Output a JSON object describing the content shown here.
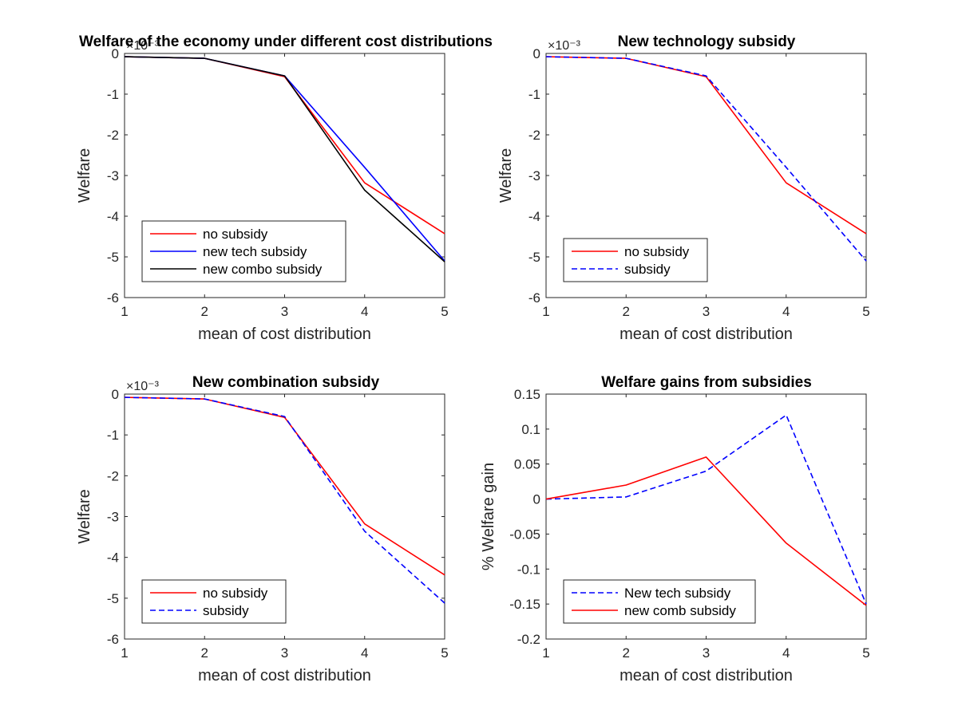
{
  "colors": {
    "red": "#ff0000",
    "blue": "#0000ff",
    "black": "#000000",
    "axis": "#262626"
  },
  "chart_data": [
    {
      "type": "line",
      "title": "Welfare of the economy under different cost distributions",
      "xlabel": "mean of cost distribution",
      "ylabel": "Welfare",
      "exponent_label": "×10⁻³",
      "x": [
        1,
        2,
        3,
        4,
        5
      ],
      "xlim": [
        1,
        5
      ],
      "ylim": [
        -6,
        0
      ],
      "xticks": [
        "1",
        "2",
        "3",
        "4",
        "5"
      ],
      "yticks": [
        "0",
        "-1",
        "-2",
        "-3",
        "-4",
        "-5",
        "-6"
      ],
      "legend_position": "bottom-left",
      "series": [
        {
          "name": "no subsidy",
          "values": [
            -0.08,
            -0.12,
            -0.57,
            -3.18,
            -4.43
          ],
          "color": "#ff0000",
          "style": "solid"
        },
        {
          "name": "new tech subsidy",
          "values": [
            -0.08,
            -0.12,
            -0.55,
            -2.8,
            -5.1
          ],
          "color": "#0000ff",
          "style": "solid"
        },
        {
          "name": "new combo subsidy",
          "values": [
            -0.08,
            -0.12,
            -0.55,
            -3.36,
            -5.12
          ],
          "color": "#000000",
          "style": "solid"
        }
      ]
    },
    {
      "type": "line",
      "title": "New technology subsidy",
      "xlabel": "mean of cost distribution",
      "ylabel": "Welfare",
      "exponent_label": "×10⁻³",
      "x": [
        1,
        2,
        3,
        4,
        5
      ],
      "xlim": [
        1,
        5
      ],
      "ylim": [
        -6,
        0
      ],
      "xticks": [
        "1",
        "2",
        "3",
        "4",
        "5"
      ],
      "yticks": [
        "0",
        "-1",
        "-2",
        "-3",
        "-4",
        "-5",
        "-6"
      ],
      "legend_position": "bottom-left",
      "series": [
        {
          "name": "no subsidy",
          "values": [
            -0.08,
            -0.12,
            -0.57,
            -3.18,
            -4.43
          ],
          "color": "#ff0000",
          "style": "solid"
        },
        {
          "name": "subsidy",
          "values": [
            -0.08,
            -0.12,
            -0.55,
            -2.8,
            -5.1
          ],
          "color": "#0000ff",
          "style": "dashed"
        }
      ]
    },
    {
      "type": "line",
      "title": "New combination subsidy",
      "xlabel": "mean of cost distribution",
      "ylabel": "Welfare",
      "exponent_label": "×10⁻³",
      "x": [
        1,
        2,
        3,
        4,
        5
      ],
      "xlim": [
        1,
        5
      ],
      "ylim": [
        -6,
        0
      ],
      "xticks": [
        "1",
        "2",
        "3",
        "4",
        "5"
      ],
      "yticks": [
        "0",
        "-1",
        "-2",
        "-3",
        "-4",
        "-5",
        "-6"
      ],
      "legend_position": "bottom-left",
      "series": [
        {
          "name": "no subsidy",
          "values": [
            -0.08,
            -0.12,
            -0.57,
            -3.18,
            -4.43
          ],
          "color": "#ff0000",
          "style": "solid"
        },
        {
          "name": "subsidy",
          "values": [
            -0.08,
            -0.12,
            -0.55,
            -3.36,
            -5.12
          ],
          "color": "#0000ff",
          "style": "dashed"
        }
      ]
    },
    {
      "type": "line",
      "title": "Welfare gains from subsidies",
      "xlabel": "mean of cost distribution",
      "ylabel": "% Welfare gain",
      "exponent_label": "",
      "x": [
        1,
        2,
        3,
        4,
        5
      ],
      "xlim": [
        1,
        5
      ],
      "ylim": [
        -0.2,
        0.15
      ],
      "xticks": [
        "1",
        "2",
        "3",
        "4",
        "5"
      ],
      "yticks": [
        "0.15",
        "0.1",
        "0.05",
        "0",
        "-0.05",
        "-0.1",
        "-0.15",
        "-0.2"
      ],
      "legend_position": "bottom-left",
      "series": [
        {
          "name": "New tech subsidy",
          "values": [
            0.0,
            0.003,
            0.04,
            0.12,
            -0.15
          ],
          "color": "#0000ff",
          "style": "dashed"
        },
        {
          "name": "new comb subsidy",
          "values": [
            0.0,
            0.02,
            0.06,
            -0.063,
            -0.152
          ],
          "color": "#ff0000",
          "style": "solid"
        }
      ]
    }
  ]
}
